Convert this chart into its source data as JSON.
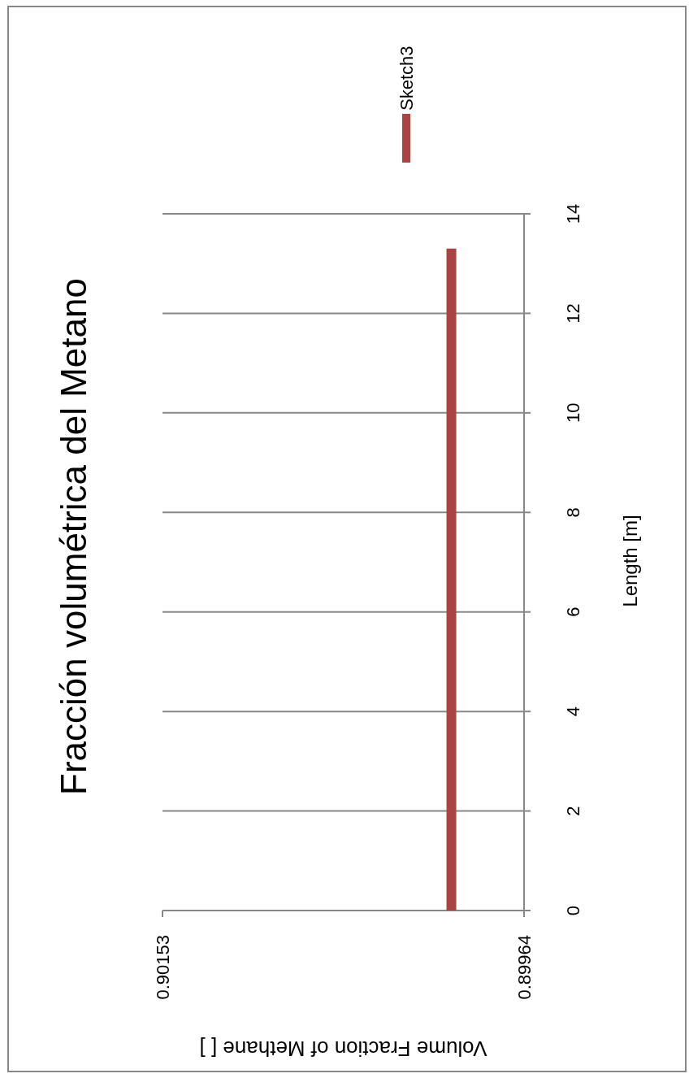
{
  "chart_data": {
    "type": "line",
    "title": "Fracción volumétrica del Metano",
    "xlabel": "Volume Fraction of Methane [ ]",
    "ylabel": "Length [m]",
    "xlim": [
      0.90153,
      0.89964
    ],
    "xticks": [
      0.90153,
      0.89964
    ],
    "ylim": [
      0,
      14
    ],
    "yticks": [
      0,
      2,
      4,
      6,
      8,
      10,
      12,
      14
    ],
    "grid": "y",
    "legend": "top right",
    "series": [
      {
        "name": "Sketch3",
        "color": "#a94442",
        "x": [
          0.90002,
          0.90002
        ],
        "values": [
          0,
          13.3
        ]
      }
    ]
  }
}
